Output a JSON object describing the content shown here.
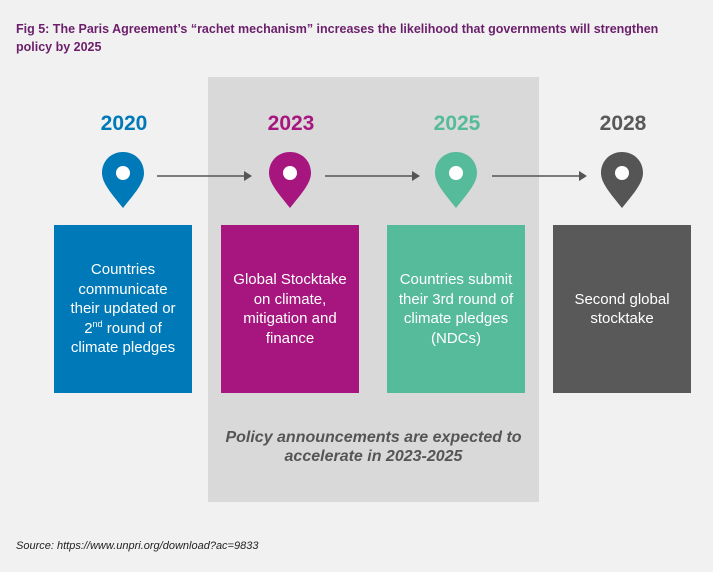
{
  "title": "Fig 5: The Paris Agreement’s “rachet mechanism” increases the likelihood that governments will strengthen policy by 2025",
  "colors": {
    "blue": "#0079b8",
    "magenta": "#a7167f",
    "teal": "#56bb9a",
    "grey": "#595959"
  },
  "stages": [
    {
      "year": "2020",
      "text_parts": [
        "Countries communicate their updated or 2",
        "nd",
        " round of climate pledges"
      ],
      "color": "#0079b8"
    },
    {
      "year": "2023",
      "text": "Global Stocktake on climate, mitigation and finance",
      "color": "#a7167f"
    },
    {
      "year": "2025",
      "text": "Countries submit their 3rd round of climate pledges (NDCs)",
      "color": "#56bb9a"
    },
    {
      "year": "2028",
      "text": "Second global stocktake",
      "color": "#595959"
    }
  ],
  "note": "Policy announcements are expected to accelerate in 2023-2025",
  "source": "Source: https://www.unpri.org/download?ac=9833"
}
